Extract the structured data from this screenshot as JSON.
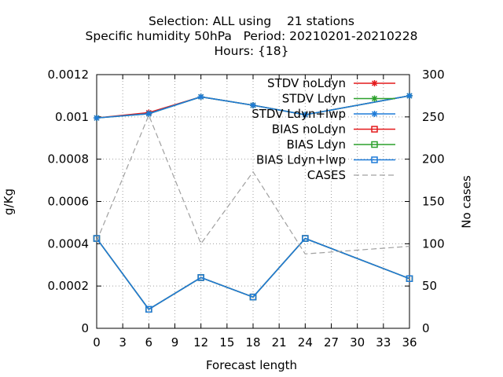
{
  "title": {
    "line1": "Selection: ALL using    21 stations",
    "line2": "Specific humidity 50hPa   Period: 20210201-20210228",
    "line3": "Hours: {18}"
  },
  "chart_data": {
    "type": "line",
    "xlabel": "Forecast length",
    "ylabel": "g/Kg",
    "y2label": "No cases",
    "xlim": [
      0,
      36
    ],
    "ylim": [
      0,
      0.0012
    ],
    "y2lim": [
      0,
      300
    ],
    "xticks": [
      "0",
      "3",
      "6",
      "9",
      "12",
      "15",
      "18",
      "21",
      "24",
      "27",
      "30",
      "33",
      "36"
    ],
    "yticks": [
      "0",
      "0.0002",
      "0.0004",
      "0.0006",
      "0.0008",
      "0.001",
      "0.0012"
    ],
    "y2ticks": [
      "0",
      "50",
      "100",
      "150",
      "200",
      "250",
      "300"
    ],
    "grid": true,
    "legend_position": "top-right",
    "x": [
      0,
      6,
      12,
      18,
      24,
      36
    ],
    "series": [
      {
        "name": "STDV noLdyn",
        "axis": "y1",
        "marker": "star",
        "style": "solid",
        "color": "#e41a1c",
        "values": [
          0.000995,
          0.00102,
          0.001095,
          0.001055,
          0.00101,
          0.0011
        ]
      },
      {
        "name": "STDV Ldyn",
        "axis": "y1",
        "marker": "star",
        "style": "solid",
        "color": "#2ca02c",
        "values": [
          0.000995,
          0.001015,
          0.001095,
          0.001055,
          0.00101,
          0.0011
        ]
      },
      {
        "name": "STDV Ldyn+lwp",
        "axis": "y1",
        "marker": "star",
        "style": "solid",
        "color": "#1e7bd8",
        "values": [
          0.000995,
          0.001015,
          0.001095,
          0.001055,
          0.00101,
          0.0011
        ]
      },
      {
        "name": "BIAS noLdyn",
        "axis": "y1",
        "marker": "square",
        "style": "solid",
        "color": "#e41a1c",
        "values": [
          0.000425,
          9e-05,
          0.00024,
          0.000148,
          0.000425,
          0.000235
        ]
      },
      {
        "name": "BIAS Ldyn",
        "axis": "y1",
        "marker": "square",
        "style": "solid",
        "color": "#2ca02c",
        "values": [
          0.000425,
          9e-05,
          0.00024,
          0.000148,
          0.000425,
          0.000235
        ]
      },
      {
        "name": "BIAS Ldyn+lwp",
        "axis": "y1",
        "marker": "square",
        "style": "solid",
        "color": "#1e7bd8",
        "values": [
          0.000425,
          9e-05,
          0.00024,
          0.000148,
          0.000425,
          0.000235
        ]
      },
      {
        "name": "CASES",
        "axis": "y2",
        "marker": "none",
        "style": "dashed",
        "color": "#a0a0a0",
        "values": [
          103,
          252,
          100,
          185,
          88,
          97
        ]
      }
    ]
  }
}
